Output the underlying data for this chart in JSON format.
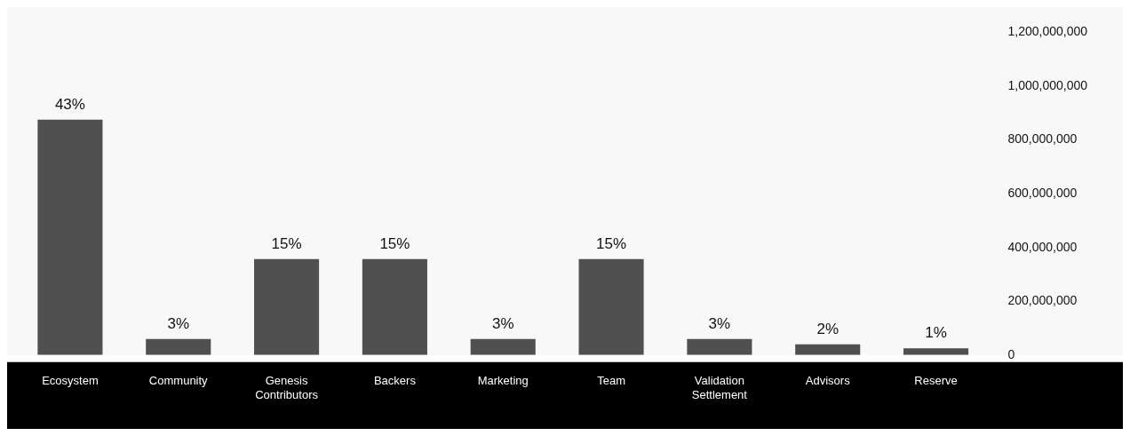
{
  "chart_data": {
    "type": "bar",
    "categories": [
      "Ecosystem",
      "Community",
      "Genesis Contributors",
      "Backers",
      "Marketing",
      "Team",
      "Validation Settlement",
      "Advisors",
      "Reserve"
    ],
    "values": [
      875000000,
      60000000,
      357000000,
      357000000,
      60000000,
      357000000,
      60000000,
      40000000,
      25000000
    ],
    "annotations": [
      {
        "text": "43%",
        "x": "Ecosystem",
        "y": 875000000
      },
      {
        "text": "3%",
        "x": "Community",
        "y": 60000000
      },
      {
        "text": "15%",
        "x": "Genesis Contributors",
        "y": 357000000
      },
      {
        "text": "15%",
        "x": "Backers",
        "y": 357000000
      },
      {
        "text": "3%",
        "x": "Marketing",
        "y": 60000000
      },
      {
        "text": "15%",
        "x": "Team",
        "y": 357000000
      },
      {
        "text": "3%",
        "x": "Validation Settlement",
        "y": 60000000
      },
      {
        "text": "2%",
        "x": "Advisors",
        "y": 40000000
      },
      {
        "text": "1%",
        "x": "Reserve",
        "y": 25000000
      }
    ],
    "color": "#505050",
    "ylim": [
      0,
      1200000000
    ],
    "yticks": [
      0,
      {
        "value": 200000000,
        "label": "200,000,000"
      },
      {
        "value": 400000000,
        "label": "400,000,000"
      },
      {
        "value": 600000000,
        "label": "600,000,000"
      },
      {
        "value": 800000000,
        "label": "800,000,000"
      },
      {
        "value": 1000000000,
        "label": "1,000,000,000"
      },
      {
        "value": 1200000000,
        "label": "1,200,000,000"
      }
    ],
    "grid": false,
    "legend": false
  }
}
